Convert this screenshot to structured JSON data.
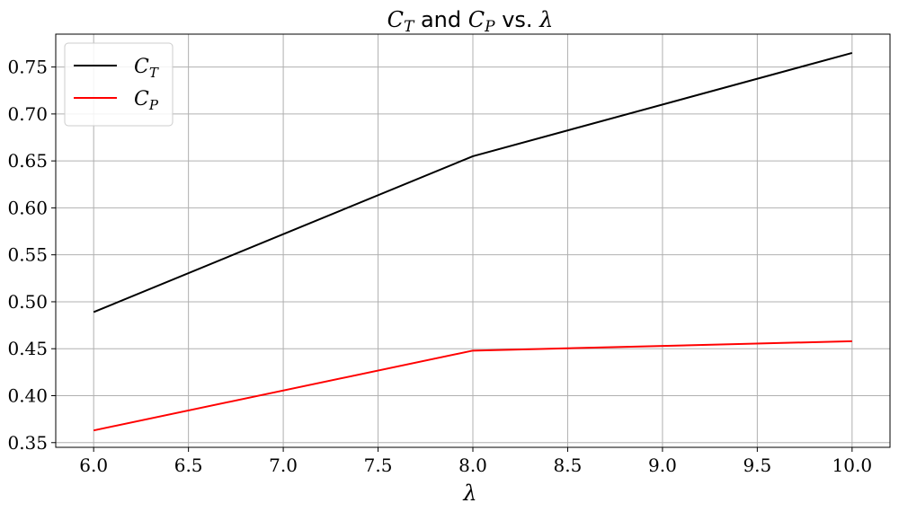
{
  "chart_data": {
    "type": "line",
    "title": {
      "parts": [
        {
          "text": "C",
          "math": true
        },
        {
          "text": "T",
          "math": true,
          "sub": true
        },
        {
          "text": " and ",
          "math": false
        },
        {
          "text": "C",
          "math": true
        },
        {
          "text": "P",
          "math": true,
          "sub": true
        },
        {
          "text": " vs. ",
          "math": false
        },
        {
          "text": "λ",
          "math": true
        }
      ]
    },
    "xlabel": "λ",
    "ylabel": "",
    "xlim": [
      5.8,
      10.2
    ],
    "ylim": [
      0.345,
      0.785
    ],
    "xticks": [
      "6.0",
      "6.5",
      "7.0",
      "7.5",
      "8.0",
      "8.5",
      "9.0",
      "9.5",
      "10.0"
    ],
    "yticks": [
      "0.35",
      "0.40",
      "0.45",
      "0.50",
      "0.55",
      "0.60",
      "0.65",
      "0.70",
      "0.75"
    ],
    "grid": true,
    "legend_position": "top-left",
    "x": [
      6,
      8,
      10
    ],
    "series": [
      {
        "name": "C",
        "sub": "T",
        "color": "#000000",
        "values": [
          0.489,
          0.655,
          0.765
        ]
      },
      {
        "name": "C",
        "sub": "P",
        "color": "#ff0000",
        "values": [
          0.363,
          0.448,
          0.458
        ]
      }
    ],
    "colors": {
      "grid": "#b0b0b0",
      "axes": "#000000",
      "legend_border": "#cccccc"
    }
  }
}
